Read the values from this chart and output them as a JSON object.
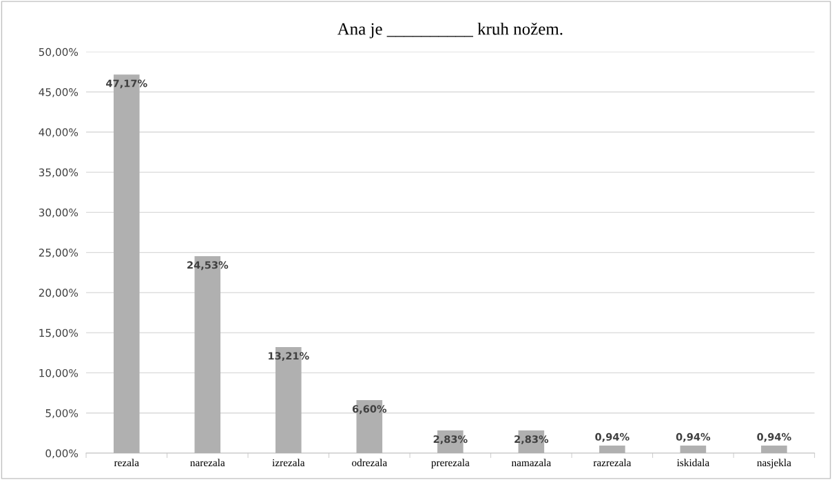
{
  "chart_data": {
    "type": "bar",
    "title": "Ana je __________ kruh nožem.",
    "categories": [
      "rezala",
      "narezala",
      "izrezala",
      "odrezala",
      "prerezala",
      "namazala",
      "razrezala",
      "iskidala",
      "nasjekla"
    ],
    "values": [
      47.17,
      24.53,
      13.21,
      6.6,
      2.83,
      2.83,
      0.94,
      0.94,
      0.94
    ],
    "value_labels": [
      "47,17%",
      "24,53%",
      "13,21%",
      "6,60%",
      "2,83%",
      "2,83%",
      "0,94%",
      "0,94%",
      "0,94%"
    ],
    "color": "#b0b0b0",
    "ylim": [
      0,
      50
    ],
    "yticks": [
      {
        "value": 0,
        "label": "0,00%"
      },
      {
        "value": 5,
        "label": "5,00%"
      },
      {
        "value": 10,
        "label": "10,00%"
      },
      {
        "value": 15,
        "label": "15,00%"
      },
      {
        "value": 20,
        "label": "20,00%"
      },
      {
        "value": 25,
        "label": "25,00%"
      },
      {
        "value": 30,
        "label": "30,00%"
      },
      {
        "value": 35,
        "label": "35,00%"
      },
      {
        "value": 40,
        "label": "40,00%"
      },
      {
        "value": 45,
        "label": "45,00%"
      },
      {
        "value": 50,
        "label": "50,00%"
      }
    ],
    "grid": "y"
  }
}
